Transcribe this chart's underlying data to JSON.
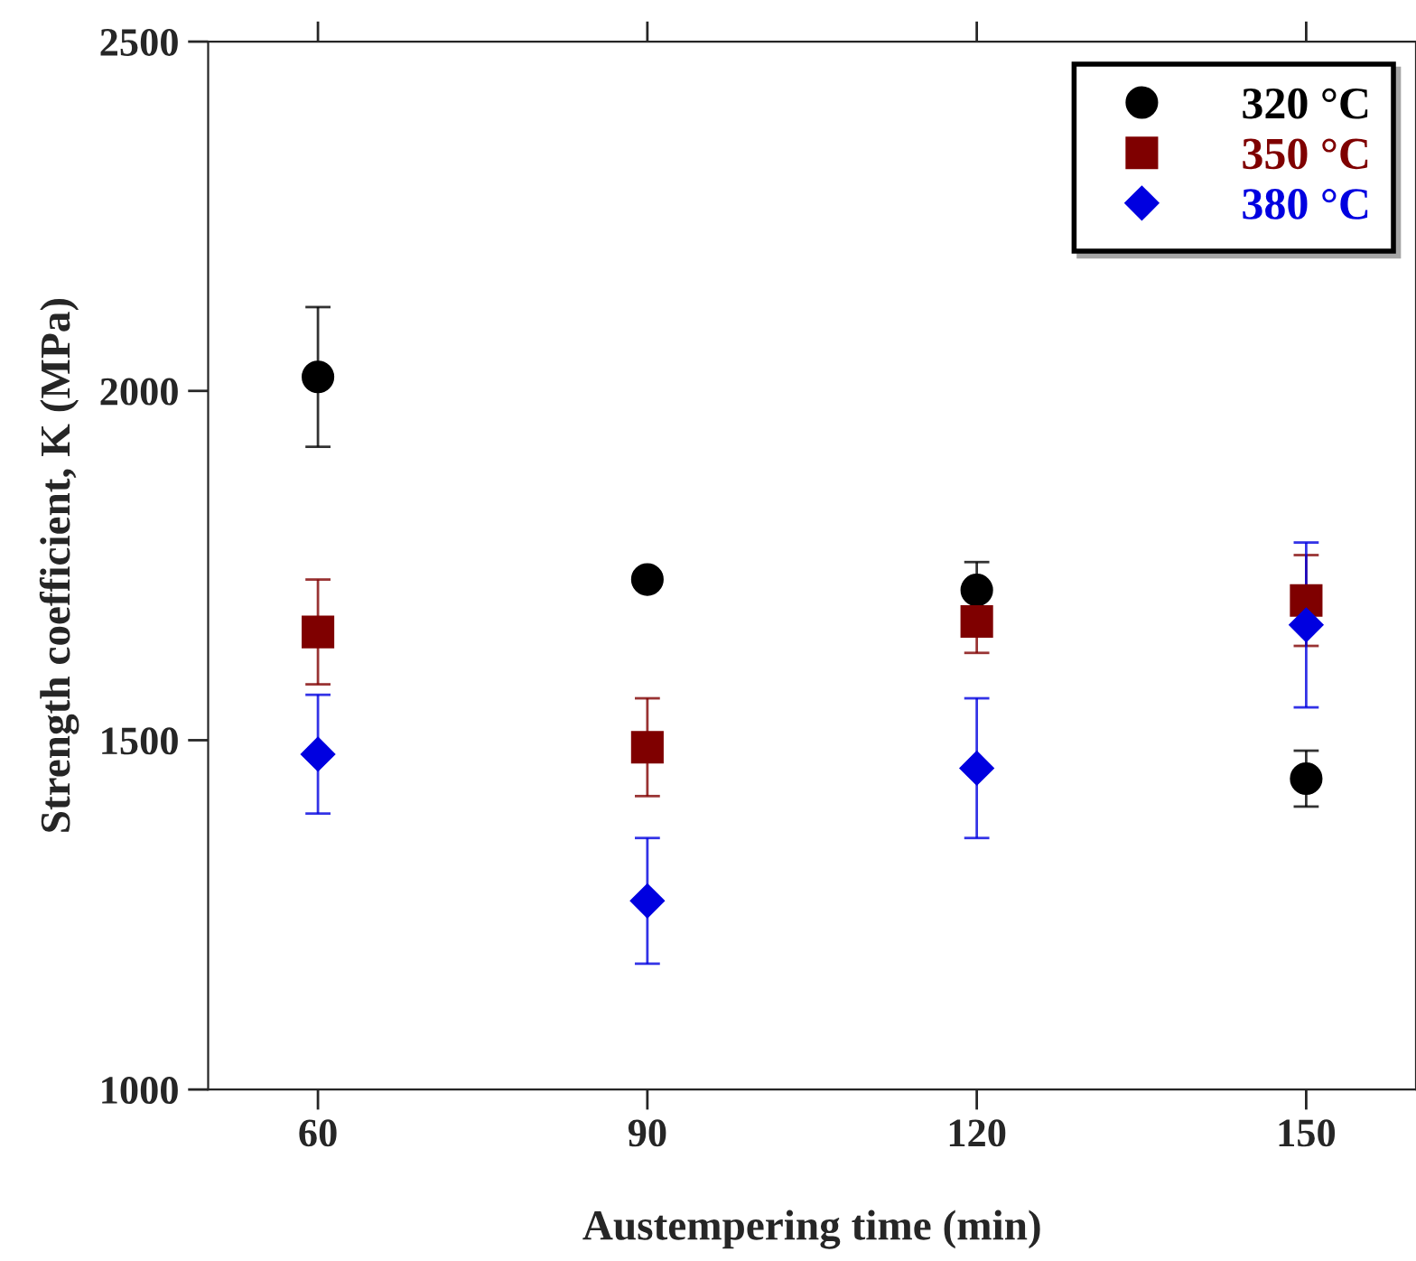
{
  "chart_data": {
    "type": "scatter",
    "xlabel": "Austempering time (min)",
    "ylabel": "Strength coefficient, K (MPa)",
    "x": [
      60,
      90,
      120,
      150
    ],
    "xlim": [
      50,
      160
    ],
    "xticks": [
      60,
      90,
      120,
      150
    ],
    "ylim": [
      1000,
      2500
    ],
    "yticks": [
      1000,
      1500,
      2000,
      2500
    ],
    "grid": false,
    "legend": "top right",
    "series": [
      {
        "name": "320 °C",
        "color": "#000000",
        "marker": "circle",
        "values": [
          2020,
          1730,
          1715,
          1445
        ],
        "errors": [
          100,
          null,
          40,
          40
        ]
      },
      {
        "name": "350 °C",
        "color": "#7f0000",
        "marker": "square",
        "values": [
          1655,
          1490,
          1670,
          1700
        ],
        "errors": [
          75,
          70,
          45,
          65
        ]
      },
      {
        "name": "380 °C",
        "color": "#0000e0",
        "marker": "diamond",
        "values": [
          1480,
          1270,
          1460,
          1665
        ],
        "errors": [
          85,
          90,
          100,
          118
        ]
      }
    ]
  }
}
